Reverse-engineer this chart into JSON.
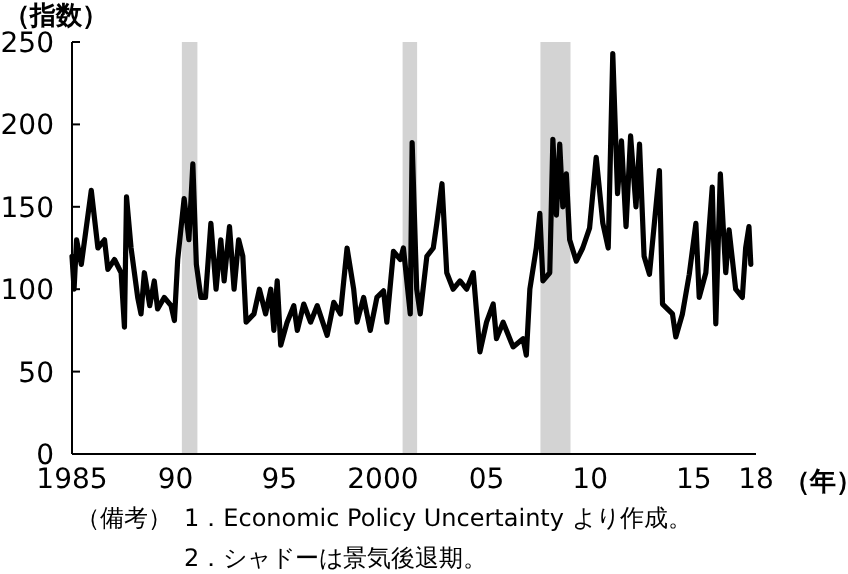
{
  "chart_data": {
    "type": "line",
    "ylabel": "（指数）",
    "xlabel": "（年）",
    "annotations": [
      "（備考）",
      "1．Economic Policy Uncertainty より作成。",
      "2．シャドーは景気後退期。"
    ],
    "x": [
      1985.0,
      1985.1,
      1985.22,
      1985.45,
      1985.93,
      1986.25,
      1986.57,
      1986.73,
      1987.05,
      1987.37,
      1987.53,
      1987.63,
      1987.85,
      1988.17,
      1988.33,
      1988.49,
      1988.75,
      1988.97,
      1989.13,
      1989.45,
      1989.78,
      1989.94,
      1990.1,
      1990.41,
      1990.64,
      1990.83,
      1991.0,
      1991.22,
      1991.44,
      1991.7,
      1991.95,
      1992.18,
      1992.34,
      1992.6,
      1992.82,
      1993.04,
      1993.24,
      1993.4,
      1993.78,
      1994.04,
      1994.34,
      1994.59,
      1994.74,
      1994.9,
      1995.07,
      1995.38,
      1995.7,
      1995.87,
      1996.18,
      1996.51,
      1996.83,
      1997.31,
      1997.63,
      1997.95,
      1998.27,
      1998.59,
      1998.75,
      1999.07,
      1999.39,
      1999.71,
      2000.03,
      2000.19,
      2000.51,
      2000.84,
      2000.99,
      2001.32,
      2001.41,
      2001.63,
      2001.8,
      2002.12,
      2002.43,
      2002.6,
      2002.85,
      2003.08,
      2003.39,
      2003.72,
      2004.04,
      2004.36,
      2004.68,
      2005.0,
      2005.32,
      2005.48,
      2005.8,
      2006.28,
      2006.76,
      2006.92,
      2007.09,
      2007.4,
      2007.57,
      2007.72,
      2008.05,
      2008.2,
      2008.37,
      2008.53,
      2008.68,
      2008.85,
      2009.01,
      2009.33,
      2009.64,
      2009.97,
      2010.29,
      2010.61,
      2010.87,
      2011.09,
      2011.32,
      2011.51,
      2011.73,
      2011.95,
      2012.21,
      2012.38,
      2012.6,
      2012.86,
      2013.34,
      2013.49,
      2013.97,
      2014.13,
      2014.45,
      2014.78,
      2015.1,
      2015.26,
      2015.58,
      2015.89,
      2016.06,
      2016.28,
      2016.54,
      2016.7,
      2017.02,
      2017.34,
      2017.5,
      2017.66,
      2017.75
    ],
    "series": [
      {
        "color": "#000000",
        "values": [
          120,
          100,
          130,
          115,
          160,
          125,
          130,
          112,
          118,
          110,
          77,
          156,
          125,
          95,
          85,
          110,
          90,
          105,
          88,
          95,
          90,
          81,
          118,
          155,
          130,
          176,
          115,
          95,
          95,
          140,
          100,
          130,
          105,
          138,
          100,
          130,
          120,
          80,
          85,
          100,
          85,
          100,
          75,
          105,
          66,
          80,
          90,
          75,
          91,
          80,
          90,
          72,
          92,
          85,
          125,
          100,
          80,
          95,
          75,
          95,
          99,
          80,
          123,
          118,
          125,
          85,
          189,
          100,
          85,
          120,
          125,
          140,
          164,
          110,
          100,
          105,
          100,
          110,
          62,
          80,
          91,
          70,
          80,
          65,
          70,
          60,
          100,
          125,
          146,
          105,
          110,
          191,
          145,
          188,
          150,
          170,
          130,
          117,
          125,
          137,
          180,
          140,
          125,
          243,
          158,
          190,
          138,
          193,
          150,
          188,
          120,
          109,
          172,
          91,
          85,
          71,
          85,
          109,
          140,
          95,
          110,
          162,
          79,
          170,
          110,
          136,
          100,
          95,
          125,
          138,
          115
        ]
      }
    ],
    "xlim": [
      1985,
      2018
    ],
    "ylim": [
      0,
      250
    ],
    "xticks": [
      {
        "value": 1985,
        "label": "1985"
      },
      {
        "value": 1990,
        "label": "90"
      },
      {
        "value": 1995,
        "label": "95"
      },
      {
        "value": 2000,
        "label": "2000"
      },
      {
        "value": 2005,
        "label": "05"
      },
      {
        "value": 2010,
        "label": "10"
      },
      {
        "value": 2015,
        "label": "15"
      },
      {
        "value": 2018,
        "label": "18"
      }
    ],
    "yticks": [
      0,
      50,
      100,
      150,
      200,
      250
    ],
    "bands": [
      {
        "axis": "x",
        "from": 1990.3,
        "to": 1991.05,
        "color": "#d3d3d3"
      },
      {
        "axis": "x",
        "from": 2000.95,
        "to": 2001.65,
        "color": "#d3d3d3"
      },
      {
        "axis": "x",
        "from": 2007.6,
        "to": 2009.05,
        "color": "#d3d3d3"
      }
    ]
  }
}
